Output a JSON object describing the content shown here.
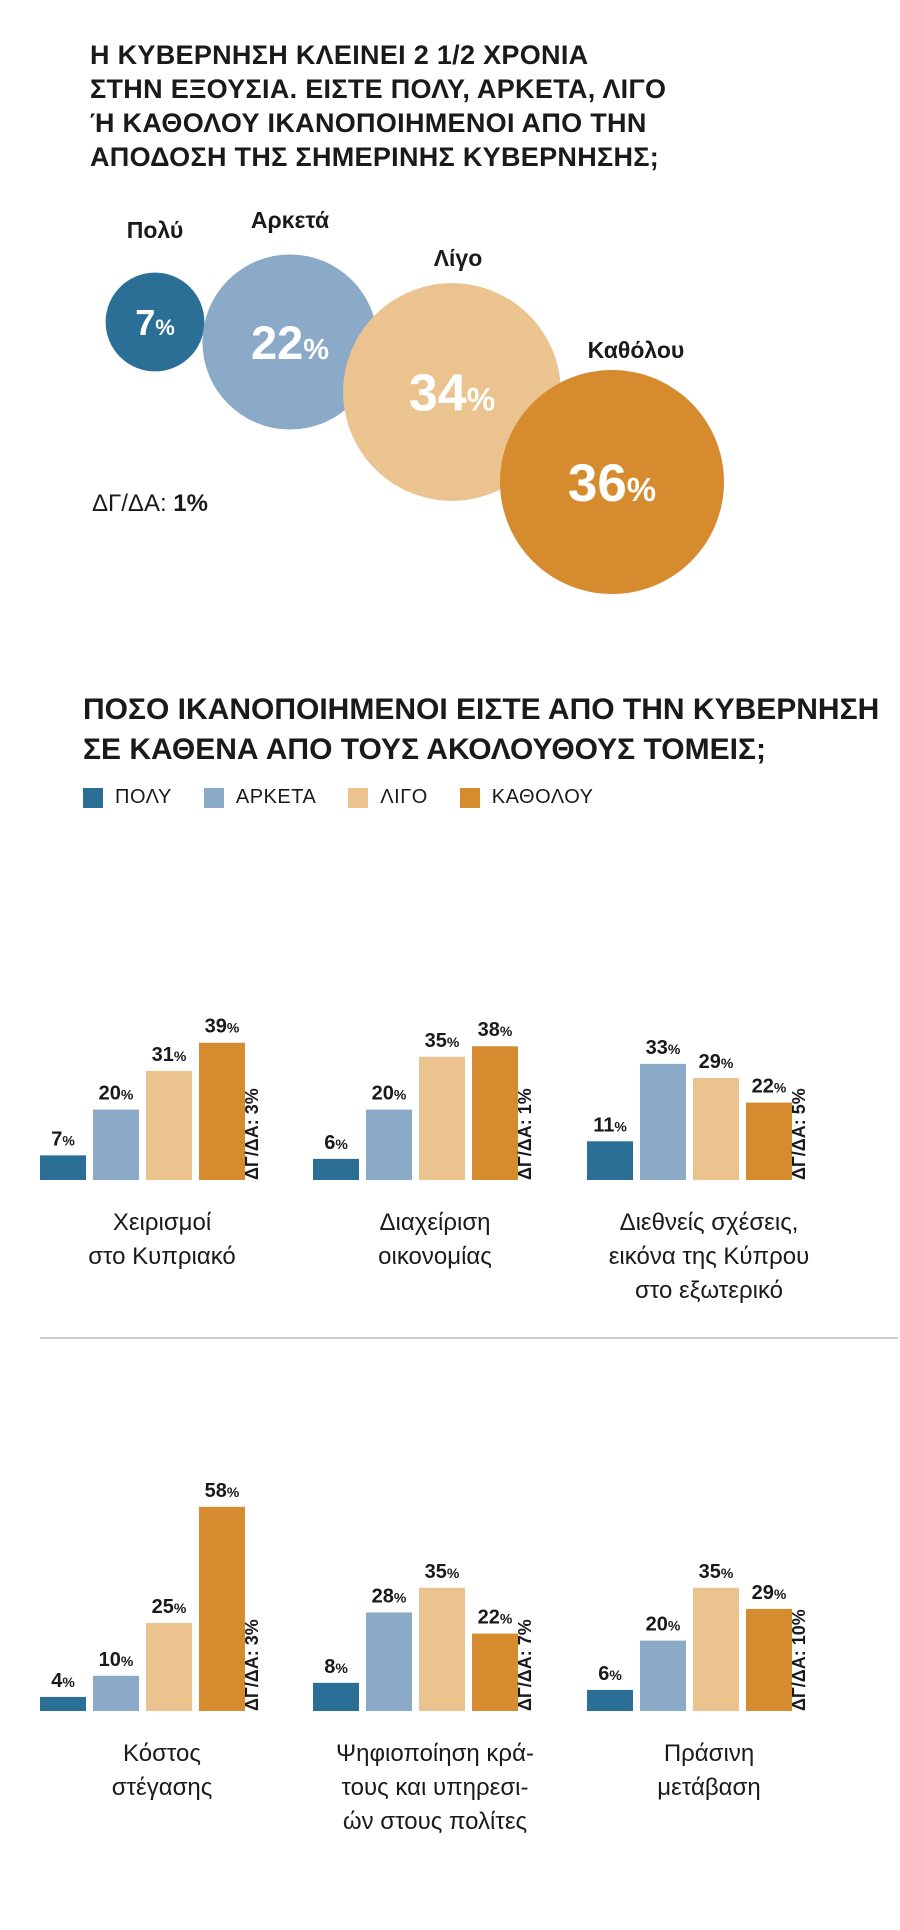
{
  "header": {
    "title_lines": [
      "Η ΚΥΒΕΡΝΗΣΗ ΚΛΕΙΝΕΙ 2 1/2 ΧΡΟΝΙΑ",
      "ΣΤΗΝ ΕΞΟΥΣΙΑ. ΕΙΣΤΕ ΠΟΛΥ, ΑΡΚΕΤΑ, ΛΙΓΟ",
      "Ή ΚΑΘΟΛΟΥ ΙΚΑΝΟΠΟΙΗΜΕΝΟΙ ΑΠΟ ΤΗΝ",
      "ΑΠΟΔΟΣΗ ΤΗΣ ΣΗΜΕΡΙΝΗΣ ΚΥΒΕΡΝΗΣΗΣ;"
    ]
  },
  "section2": {
    "title_lines": [
      "ΠΟΣΟ ΙΚΑΝΟΠΟΙΗΜΕΝΟΙ ΕΙΣΤΕ ΑΠΟ ΤΗΝ ΚΥΒΕΡΝΗΣΗ",
      "ΣΕ ΚΑΘΕΝΑ ΑΠΟ ΤΟΥΣ ΑΚΟΛΟΥΘΟΥΣ ΤΟΜΕΙΣ;"
    ],
    "legend": [
      {
        "label": "ΠΟΛΥ",
        "color": "#2b6e96"
      },
      {
        "label": "ΑΡΚΕΤΑ",
        "color": "#8aaac7"
      },
      {
        "label": "ΛΙΓΟ",
        "color": "#eac38f"
      },
      {
        "label": "ΚΑΘΟΛΟΥ",
        "color": "#d68c2e"
      }
    ]
  },
  "colors": {
    "poly": "#2b6e96",
    "arketa": "#8aaac7",
    "ligo": "#eac38f",
    "katholou": "#d68c2e"
  },
  "chart_data": [
    {
      "type": "bubble",
      "title": "Η ΚΥΒΕΡΝΗΣΗ ΚΛΕΙΝΕΙ 2 1/2 ΧΡΟΝΙΑ ΣΤΗΝ ΕΞΟΥΣΙΑ. ΕΙΣΤΕ ΠΟΛΥ, ΑΡΚΕΤΑ, ΛΙΓΟ Ή ΚΑΘΟΛΟΥ ΙΚΑΝΟΠΟΙΗΜΕΝΟΙ ΑΠΟ ΤΗΝ ΑΠΟΔΟΣΗ ΤΗΣ ΣΗΜΕΡΙΝΗΣ ΚΥΒΕΡΝΗΣΗΣ;",
      "categories": [
        "Πολύ",
        "Αρκετά",
        "Λίγο",
        "Καθόλου"
      ],
      "values": [
        7,
        22,
        34,
        36
      ],
      "unit": "%",
      "dk_label": "ΔΓ/ΔΑ:",
      "dk_value": "1%"
    },
    {
      "type": "bar",
      "title": "ΠΟΣΟ ΙΚΑΝΟΠΟΙΗΜΕΝΟΙ ΕΙΣΤΕ ΑΠΟ ΤΗΝ ΚΥΒΕΡΝΗΣΗ ΣΕ ΚΑΘΕΝΑ ΑΠΟ ΤΟΥΣ ΑΚΟΛΟΥΘΟΥΣ ΤΟΜΕΙΣ;",
      "series_names": [
        "ΠΟΛΥ",
        "ΑΡΚΕΤΑ",
        "ΛΙΓΟ",
        "ΚΑΘΟΛΟΥ"
      ],
      "unit": "%",
      "ylim": [
        0,
        60
      ],
      "groups": [
        {
          "label_lines": [
            "Χειρισμοί",
            "στο Κυπριακό"
          ],
          "values": [
            7,
            20,
            31,
            39
          ],
          "dk": "ΔΓ/ΔΑ: 3%"
        },
        {
          "label_lines": [
            "Διαχείριση",
            "οικονομίας"
          ],
          "values": [
            6,
            20,
            35,
            38
          ],
          "dk": "ΔΓ/ΔΑ: 1%"
        },
        {
          "label_lines": [
            "Διεθνείς σχέσεις,",
            "εικόνα της Κύπρου",
            "στο εξωτερικό"
          ],
          "values": [
            11,
            33,
            29,
            22
          ],
          "dk": "ΔΓ/ΔΑ: 5%"
        },
        {
          "label_lines": [
            "Κόστος",
            "στέγασης"
          ],
          "values": [
            4,
            10,
            25,
            58
          ],
          "dk": "ΔΓ/ΔΑ: 3%"
        },
        {
          "label_lines": [
            "Ψηφιοποίηση κρά-",
            "τους και υπηρεσι-",
            "ών στους πολίτες"
          ],
          "values": [
            8,
            28,
            35,
            22
          ],
          "dk": "ΔΓ/ΔΑ: 7%"
        },
        {
          "label_lines": [
            "Πράσινη",
            "μετάβαση"
          ],
          "values": [
            6,
            20,
            35,
            29
          ],
          "dk": "ΔΓ/ΔΑ: 10%"
        }
      ]
    }
  ]
}
